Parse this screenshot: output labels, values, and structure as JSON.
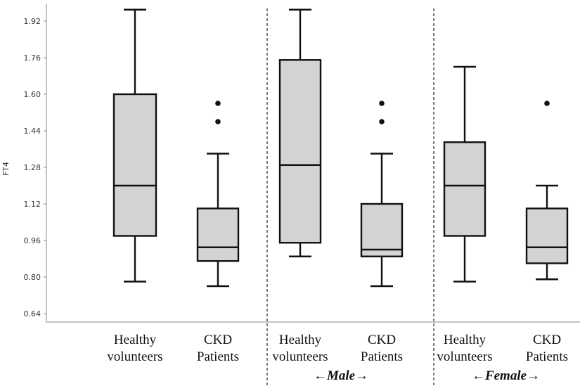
{
  "chart_data": {
    "type": "box",
    "ylabel": "FT4",
    "yticks": [
      "0.64",
      "0.80",
      "0.96",
      "1.12",
      "1.28",
      "1.44",
      "1.60",
      "1.76",
      "1.92"
    ],
    "ylim": [
      0.6,
      1.98
    ],
    "grid": false,
    "groups": [
      {
        "label": "",
        "categories": [
          {
            "label": [
              "Healthy",
              "volunteers"
            ],
            "min": 0.78,
            "q1": 0.98,
            "median": 1.2,
            "q3": 1.6,
            "max": 1.97,
            "outliers": []
          },
          {
            "label": [
              "CKD",
              "Patients"
            ],
            "min": 0.76,
            "q1": 0.87,
            "median": 0.93,
            "q3": 1.1,
            "max": 1.34,
            "outliers": [
              1.48,
              1.56
            ]
          }
        ]
      },
      {
        "label": "←Male→",
        "categories": [
          {
            "label": [
              "Healthy",
              "volunteers"
            ],
            "min": 0.89,
            "q1": 0.95,
            "median": 1.29,
            "q3": 1.75,
            "max": 1.97,
            "outliers": []
          },
          {
            "label": [
              "CKD",
              "Patients"
            ],
            "min": 0.76,
            "q1": 0.89,
            "median": 0.92,
            "q3": 1.12,
            "max": 1.34,
            "outliers": [
              1.48,
              1.56
            ]
          }
        ]
      },
      {
        "label": "←Female→",
        "categories": [
          {
            "label": [
              "Healthy",
              "volunteers"
            ],
            "min": 0.78,
            "q1": 0.98,
            "median": 1.2,
            "q3": 1.39,
            "max": 1.72,
            "outliers": []
          },
          {
            "label": [
              "CKD",
              "Patients"
            ],
            "min": 0.79,
            "q1": 0.86,
            "median": 0.93,
            "q3": 1.1,
            "max": 1.2,
            "outliers": [
              1.56
            ]
          }
        ]
      }
    ],
    "colors": {
      "box_fill": "#d3d3d3",
      "stroke": "#111111",
      "axis": "#888888"
    }
  }
}
